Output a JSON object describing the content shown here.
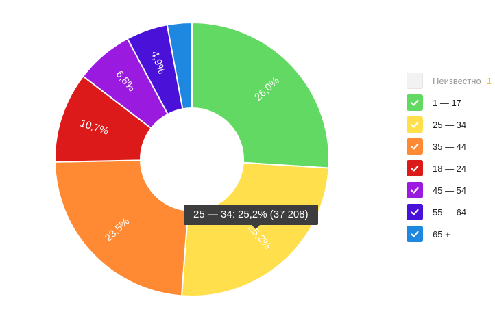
{
  "chart_data": {
    "type": "pie",
    "donut": true,
    "series": [
      {
        "name": "1 — 17",
        "value": 26.0,
        "label": "26,0%",
        "color": "#62d962"
      },
      {
        "name": "25 — 34",
        "value": 25.2,
        "label": "25,2%",
        "color": "#ffdf4c"
      },
      {
        "name": "35 — 44",
        "value": 23.5,
        "label": "23,5%",
        "color": "#ff8a33"
      },
      {
        "name": "18 — 24",
        "value": 10.7,
        "label": "10,7%",
        "color": "#dd1a1a"
      },
      {
        "name": "45 — 54",
        "value": 6.8,
        "label": "6,8%",
        "color": "#9a1ae0"
      },
      {
        "name": "55 — 64",
        "value": 4.9,
        "label": "4,9%",
        "color": "#4a12d9"
      },
      {
        "name": "65 +",
        "value": 2.9,
        "label": "",
        "color": "#1e88e0"
      }
    ],
    "legend_placement": "right"
  },
  "legend": {
    "items": [
      {
        "label": "Неизвестно",
        "count": "1",
        "checked": false
      },
      {
        "label": "1 — 17",
        "checked": true,
        "color": "#62d962"
      },
      {
        "label": "25 — 34",
        "checked": true,
        "color": "#ffdf4c"
      },
      {
        "label": "35 — 44",
        "checked": true,
        "color": "#ff8a33"
      },
      {
        "label": "18 — 24",
        "checked": true,
        "color": "#dd1a1a"
      },
      {
        "label": "45 — 54",
        "checked": true,
        "color": "#9a1ae0"
      },
      {
        "label": "55 — 64",
        "checked": true,
        "color": "#4a12d9"
      },
      {
        "label": "65 +",
        "checked": true,
        "color": "#1e88e0"
      }
    ]
  },
  "tooltip": {
    "text": "25 — 34: 25,2% (37 208)"
  }
}
